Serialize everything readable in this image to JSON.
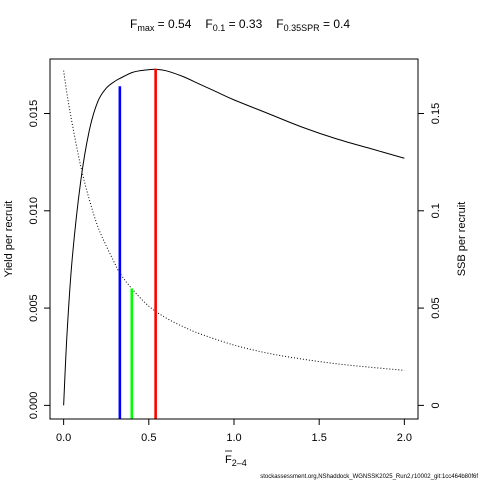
{
  "chart_data": {
    "type": "line",
    "title": {
      "fmax": {
        "main": "F",
        "sub": "max",
        "rest": " = 0.54"
      },
      "f01": {
        "main": "F",
        "sub": "0.1",
        "rest": " = 0.33"
      },
      "fspr": {
        "main": "F",
        "sub": "0.35SPR",
        "rest": " = 0.4"
      }
    },
    "xlabel": {
      "main": "F",
      "sub": "2–4"
    },
    "ylabel_left": "Yield per recruit",
    "ylabel_right": "SSB per recruit",
    "caption": "stockassessment.org,NShaddock_WGNSSK2025_Run2,r10002_git:1cc464b80f6f",
    "xlim": [
      -0.08,
      2.08
    ],
    "ylim_left": [
      -0.0007,
      0.0178
    ],
    "ylim_right": [
      -0.007,
      0.178
    ],
    "x_ticks": [
      0,
      0.5,
      1,
      1.5,
      2
    ],
    "x_tick_labels": [
      "0.0",
      "0.5",
      "1.0",
      "1.5",
      "2.0"
    ],
    "y_left_ticks": [
      0,
      0.005,
      0.01,
      0.015
    ],
    "y_left_tick_labels": [
      "0.000",
      "0.005",
      "0.010",
      "0.015"
    ],
    "y_right_ticks": [
      0,
      0.05,
      0.1,
      0.15
    ],
    "y_right_tick_labels": [
      "0",
      "0.05",
      "0.1",
      "0.15"
    ],
    "grid": false,
    "series": [
      {
        "name": "Yield per recruit",
        "axis": "left",
        "style": "solid",
        "color": "#000000",
        "x": [
          0,
          0.02,
          0.05,
          0.1,
          0.15,
          0.2,
          0.25,
          0.3,
          0.33,
          0.4,
          0.45,
          0.5,
          0.54,
          0.6,
          0.7,
          0.8,
          0.9,
          1.0,
          1.2,
          1.4,
          1.6,
          1.8,
          2.0
        ],
        "y": [
          0,
          0.0037,
          0.0075,
          0.0115,
          0.0141,
          0.0156,
          0.0163,
          0.01665,
          0.0168,
          0.0171,
          0.0172,
          0.01725,
          0.01727,
          0.0172,
          0.0169,
          0.0165,
          0.0161,
          0.0157,
          0.015,
          0.0143,
          0.0137,
          0.0132,
          0.0127
        ]
      },
      {
        "name": "SSB per recruit",
        "axis": "right",
        "style": "dotted",
        "color": "#000000",
        "x": [
          0,
          0.02,
          0.05,
          0.1,
          0.15,
          0.2,
          0.25,
          0.3,
          0.33,
          0.4,
          0.5,
          0.6,
          0.7,
          0.8,
          1.0,
          1.2,
          1.4,
          1.6,
          1.8,
          2.0
        ],
        "y": [
          0.172,
          0.16,
          0.145,
          0.123,
          0.106,
          0.092,
          0.082,
          0.073,
          0.068,
          0.06,
          0.051,
          0.045,
          0.0405,
          0.0368,
          0.031,
          0.0268,
          0.0238,
          0.0214,
          0.0196,
          0.018
        ]
      }
    ],
    "reference_lines": [
      {
        "name": "F0.1",
        "x": 0.33,
        "axis": "left",
        "top": 0.0164,
        "color": "#0000ff"
      },
      {
        "name": "F0.35SPR",
        "x": 0.4,
        "axis": "left",
        "top": 0.006,
        "color": "#00ff00"
      },
      {
        "name": "Fmax",
        "x": 0.54,
        "axis": "left",
        "top": 0.0173,
        "color": "#ff0000"
      }
    ]
  }
}
